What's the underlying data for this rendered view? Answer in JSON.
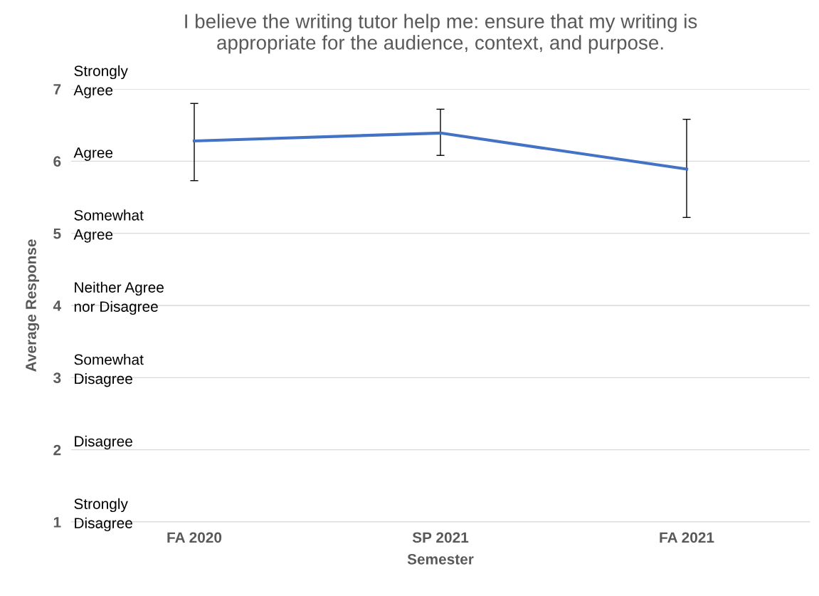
{
  "chart_data": {
    "type": "line",
    "title": "I believe the writing tutor help me: ensure that my writing is\nappropriate for the audience, context, and purpose.",
    "xlabel": "Semester",
    "ylabel": "Average Response",
    "categories": [
      "FA 2020",
      "SP 2021",
      "FA 2021"
    ],
    "series": [
      {
        "color": "#4472c4",
        "values": [
          6.28,
          6.39,
          5.89
        ],
        "errors": [
          [
            5.73,
            6.8
          ],
          [
            6.08,
            6.72
          ],
          [
            5.22,
            6.58
          ]
        ]
      }
    ],
    "ylim": [
      1,
      7
    ],
    "yticks": [
      1,
      2,
      3,
      4,
      5,
      6,
      7
    ],
    "grid": "y",
    "legend": false,
    "marker": "none",
    "line_style": "solid",
    "annotations": [
      "Strongly\nAgree",
      "Agree",
      "Somewhat\nAgree",
      "Neither Agree\nnor Disagree",
      "Somewhat\nDisagree",
      "Disagree",
      "Strongly\nDisagree"
    ]
  }
}
